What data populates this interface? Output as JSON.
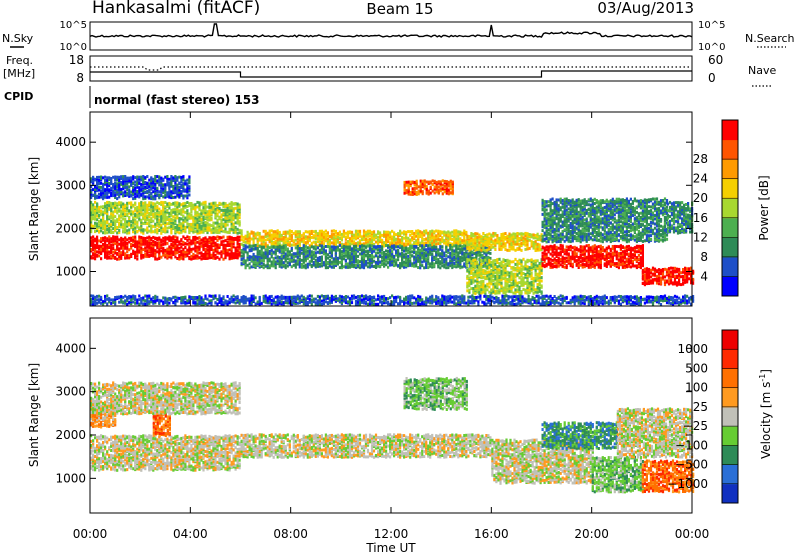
{
  "header": {
    "station": "Hankasalmi (fitACF)",
    "beam": "Beam 15",
    "date": "03/Aug/2013"
  },
  "noise_panel": {
    "left_label": "N.Sky",
    "right_label": "N.Search",
    "left_ticks": [
      "10^5",
      "10^0"
    ],
    "right_ticks": [
      "10^5",
      "10^0"
    ]
  },
  "freq_panel": {
    "left_label_1": "Freq.",
    "left_label_2": "[MHz]",
    "left_ticks": [
      "18",
      "8"
    ],
    "right_label": "Nave",
    "right_ticks": [
      "60",
      "0"
    ]
  },
  "cpid": {
    "label": "CPID",
    "text": "normal (fast stereo) 153"
  },
  "colors": {
    "power_scale": [
      "#0000ff",
      "#1e4fc8",
      "#2e8b57",
      "#4caf50",
      "#a8d830",
      "#f5d000",
      "#ff9a00",
      "#ff5500",
      "#ff0000"
    ],
    "velocity_scale": [
      "#1030c0",
      "#2a6fd6",
      "#2e8b57",
      "#66cc33",
      "#c0c0b8",
      "#ff9a20",
      "#ff7000",
      "#ff2a00",
      "#ee0000"
    ]
  },
  "chart_data": [
    {
      "type": "heatmap",
      "name": "power",
      "ylabel": "Slant Range [km]",
      "ylim": [
        200,
        4700
      ],
      "yticks": [
        "1000",
        "2000",
        "3000",
        "4000"
      ],
      "xlim": [
        0,
        24
      ],
      "colorbar_label": "Power [dB]",
      "colorbar_ticks": [
        "4",
        "8",
        "12",
        "16",
        "20",
        "24",
        "28"
      ],
      "bands": [
        {
          "t0": 0,
          "t1": 6,
          "r0": 1300,
          "r1": 1800,
          "level": 8
        },
        {
          "t0": 0,
          "t1": 6,
          "r0": 1900,
          "r1": 2600,
          "level": 4
        },
        {
          "t0": 0,
          "t1": 4,
          "r0": 2700,
          "r1": 3200,
          "level": 1
        },
        {
          "t0": 6,
          "t1": 15,
          "r0": 1600,
          "r1": 1950,
          "level": 5
        },
        {
          "t0": 6,
          "t1": 16,
          "r0": 1100,
          "r1": 1600,
          "level": 2
        },
        {
          "t0": 12.5,
          "t1": 14.5,
          "r0": 2800,
          "r1": 3100,
          "level": 7
        },
        {
          "t0": 15,
          "t1": 18,
          "r0": 500,
          "r1": 1300,
          "level": 4
        },
        {
          "t0": 15,
          "t1": 18,
          "r0": 1500,
          "r1": 1900,
          "level": 5
        },
        {
          "t0": 18,
          "t1": 22,
          "r0": 1100,
          "r1": 1600,
          "level": 8
        },
        {
          "t0": 18,
          "t1": 23,
          "r0": 1700,
          "r1": 2700,
          "level": 2
        },
        {
          "t0": 22,
          "t1": 24,
          "r0": 700,
          "r1": 1100,
          "level": 8
        },
        {
          "t0": 23,
          "t1": 24,
          "r0": 1900,
          "r1": 2600,
          "level": 2
        },
        {
          "t0": 0,
          "t1": 24,
          "r0": 250,
          "r1": 450,
          "level": 1
        }
      ]
    },
    {
      "type": "heatmap",
      "name": "velocity",
      "ylabel": "Slant Range [km]",
      "ylim": [
        200,
        4700
      ],
      "yticks": [
        "1000",
        "2000",
        "3000",
        "4000"
      ],
      "xlim": [
        0,
        24
      ],
      "xticks": [
        "00:00",
        "04:00",
        "08:00",
        "12:00",
        "16:00",
        "20:00",
        "00:00"
      ],
      "xlabel": "Time UT",
      "colorbar_label": "Velocity [m s",
      "colorbar_label_sup": "-1",
      "colorbar_label_end": "]",
      "colorbar_ticks": [
        "1000",
        "500",
        "100",
        "25",
        "−25",
        "−100",
        "−500",
        "−1000"
      ],
      "bands": [
        {
          "t0": 0,
          "t1": 6,
          "r0": 1200,
          "r1": 2000,
          "level": 4
        },
        {
          "t0": 0,
          "t1": 1,
          "r0": 2200,
          "r1": 2700,
          "level": 5
        },
        {
          "t0": 2.5,
          "t1": 3.2,
          "r0": 2000,
          "r1": 2500,
          "level": 6
        },
        {
          "t0": 0,
          "t1": 6,
          "r0": 2500,
          "r1": 3200,
          "level": 4
        },
        {
          "t0": 6,
          "t1": 16,
          "r0": 1500,
          "r1": 2000,
          "level": 4
        },
        {
          "t0": 12.5,
          "t1": 15,
          "r0": 2600,
          "r1": 3300,
          "level": 3
        },
        {
          "t0": 16,
          "t1": 20,
          "r0": 900,
          "r1": 1900,
          "level": 4
        },
        {
          "t0": 18,
          "t1": 21,
          "r0": 1700,
          "r1": 2300,
          "level": 2
        },
        {
          "t0": 20,
          "t1": 22,
          "r0": 700,
          "r1": 1500,
          "level": 3
        },
        {
          "t0": 22,
          "t1": 24,
          "r0": 700,
          "r1": 1400,
          "level": 6
        },
        {
          "t0": 21,
          "t1": 24,
          "r0": 1500,
          "r1": 2600,
          "level": 4
        }
      ]
    }
  ]
}
